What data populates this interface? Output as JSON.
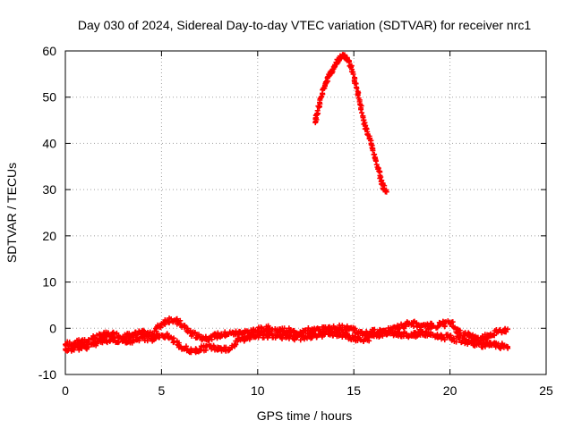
{
  "chart_data": {
    "type": "scatter",
    "title": "Day 030 of 2024, Sidereal Day-to-day VTEC variation (SDTVAR) for receiver nrc1",
    "xlabel": "GPS time / hours",
    "ylabel": "SDTVAR / TECUs",
    "xlim": [
      0,
      25
    ],
    "ylim": [
      -10,
      60
    ],
    "xticks": [
      0,
      5,
      10,
      15,
      20,
      25
    ],
    "yticks": [
      -10,
      0,
      10,
      20,
      30,
      40,
      50,
      60
    ],
    "grid": true,
    "marker": "+",
    "color": "#ff0000",
    "series": [
      {
        "name": "band-upper",
        "x": [
          0,
          0.5,
          1,
          1.5,
          2,
          2.5,
          3,
          3.5,
          4,
          4.5,
          5,
          5.5,
          6,
          6.5,
          7,
          7.5,
          8,
          8.5,
          9,
          9.5,
          10,
          10.5,
          11,
          11.5,
          12,
          12.5,
          13,
          13.5,
          14,
          14.5,
          15,
          15.5,
          16,
          16.5,
          17,
          17.5,
          18,
          18.5,
          19,
          19.5,
          20,
          20.5,
          21,
          21.5,
          22,
          22.5,
          23
        ],
        "y": [
          -3.5,
          -3.2,
          -3,
          -2,
          -1.5,
          -1.3,
          -1.8,
          -1.5,
          -1,
          -1.5,
          1,
          2,
          1,
          -1,
          -2,
          -2,
          -1.5,
          -1.2,
          -1,
          -0.8,
          -0.5,
          0,
          -0.5,
          -0.5,
          -1,
          -0.5,
          -0.5,
          -0.2,
          0,
          0.2,
          -0.5,
          -1.2,
          -0.8,
          -0.5,
          -0.5,
          0.5,
          1.2,
          0.2,
          0.5,
          0.8,
          1.2,
          -1,
          -1.5,
          -2.5,
          -1.5,
          -0.8,
          -0.2
        ]
      },
      {
        "name": "band-lower",
        "x": [
          0,
          0.5,
          1,
          1.5,
          2,
          2.5,
          3,
          3.5,
          4,
          4.5,
          5,
          5.5,
          6,
          6.5,
          7,
          7.5,
          8,
          8.5,
          9,
          9.5,
          10,
          10.5,
          11,
          11.5,
          12,
          12.5,
          13,
          13.5,
          14,
          14.5,
          15,
          15.5,
          16,
          16.5,
          17,
          17.5,
          18,
          18.5,
          19,
          19.5,
          20,
          20.5,
          21,
          21.5,
          22,
          22.5,
          23
        ],
        "y": [
          -4.5,
          -4.2,
          -4,
          -3.5,
          -2.5,
          -2.5,
          -2.8,
          -2.5,
          -2,
          -2.2,
          -1.5,
          -2,
          -4,
          -5,
          -4.5,
          -4,
          -4.2,
          -4.5,
          -2.5,
          -2,
          -1.5,
          -1.5,
          -1.5,
          -2,
          -2,
          -1.8,
          -1.5,
          -1.2,
          -1,
          -1.5,
          -2,
          -2.8,
          -1.5,
          -1.2,
          -1,
          -1.2,
          -1.5,
          -1,
          -1.5,
          -1.8,
          -2,
          -2.5,
          -3,
          -3.5,
          -3.5,
          -3.8,
          -4
        ]
      },
      {
        "name": "arc",
        "x": [
          13.0,
          13.1,
          13.3,
          13.5,
          13.7,
          13.9,
          14.1,
          14.3,
          14.5,
          14.7,
          14.9,
          15.1,
          15.3,
          15.5,
          15.7,
          15.9,
          16.1,
          16.3,
          16.5,
          16.7
        ],
        "y": [
          44.5,
          46.5,
          50,
          52.5,
          54.5,
          56,
          57.5,
          58.5,
          59,
          58,
          56,
          53,
          49,
          45,
          42.5,
          40,
          37,
          34,
          31,
          29.5
        ]
      }
    ]
  }
}
